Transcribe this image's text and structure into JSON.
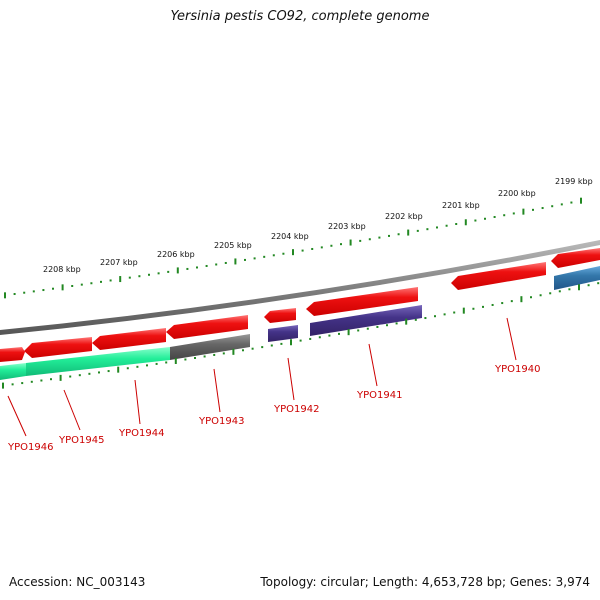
{
  "title": "Yersinia pestis CO92, complete genome",
  "footer": {
    "accession": "Accession: NC_003143",
    "summary": "Topology: circular; Length: 4,653,728 bp; Genes: 3,974"
  },
  "scale_labels": [
    "2208 kbp",
    "2207 kbp",
    "2206 kbp",
    "2205 kbp",
    "2204 kbp",
    "2203 kbp",
    "2202 kbp",
    "2201 kbp",
    "2200 kbp",
    "2199 kbp"
  ],
  "gene_labels": [
    "YPO1946",
    "YPO1945",
    "YPO1944",
    "YPO1943",
    "YPO1942",
    "YPO1941",
    "YPO1940"
  ],
  "colors": {
    "backbone": "#8a8a8a",
    "gene_red": "#ee1111",
    "gene_green": "#22ee99",
    "gene_gray": "#666666",
    "gene_purple": "#443388",
    "gene_blue": "#3377aa",
    "scale": "#228822",
    "label": "#cc0000"
  }
}
